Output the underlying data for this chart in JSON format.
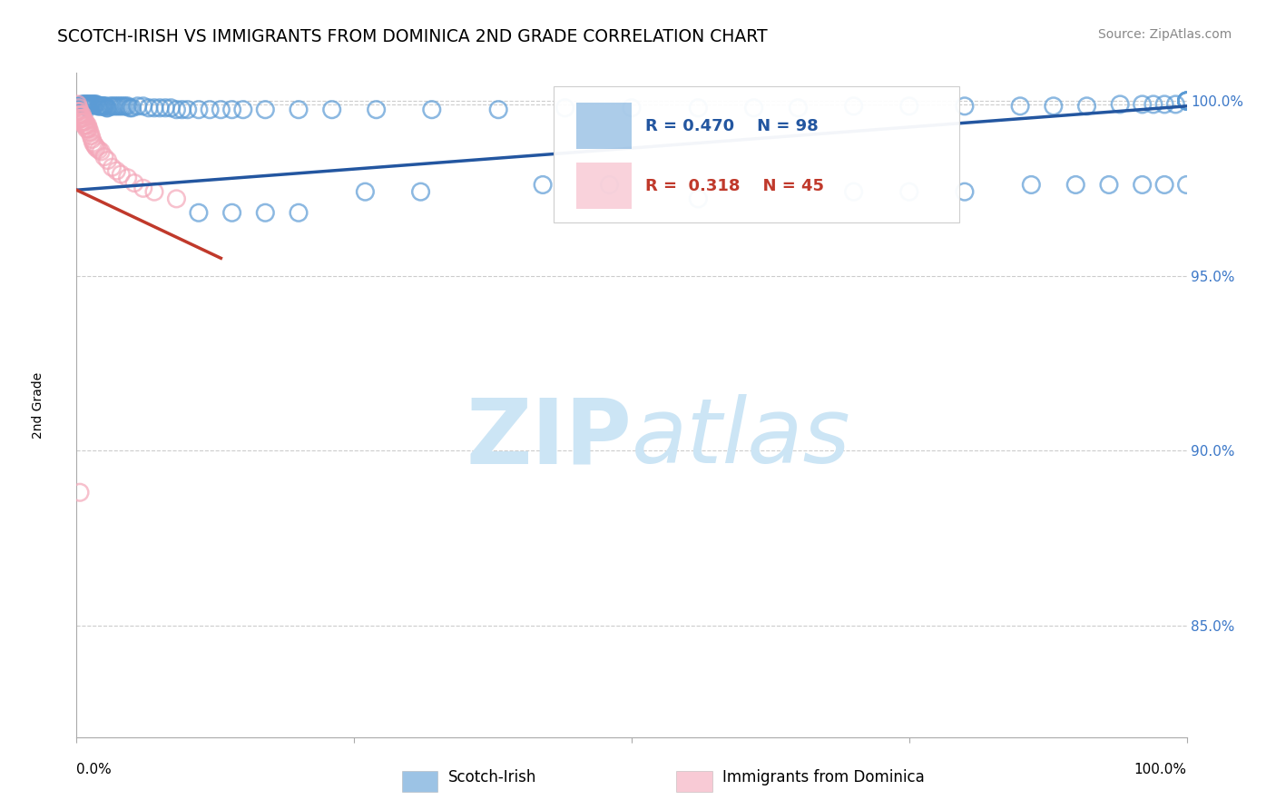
{
  "title": "SCOTCH-IRISH VS IMMIGRANTS FROM DOMINICA 2ND GRADE CORRELATION CHART",
  "source": "Source: ZipAtlas.com",
  "ylabel": "2nd Grade",
  "xmin": 0.0,
  "xmax": 1.0,
  "ymin": 0.818,
  "ymax": 1.008,
  "yticks": [
    0.85,
    0.9,
    0.95,
    1.0
  ],
  "ytick_labels": [
    "85.0%",
    "90.0%",
    "95.0%",
    "100.0%"
  ],
  "blue_R": 0.47,
  "blue_N": 98,
  "pink_R": 0.318,
  "pink_N": 45,
  "blue_color": "#5b9bd5",
  "pink_color": "#f4a7b9",
  "blue_line_color": "#2356a0",
  "pink_line_color": "#c0392b",
  "legend_blue_label": "Scotch-Irish",
  "legend_pink_label": "Immigrants from Dominica",
  "watermark_color": "#cce5f5",
  "blue_trend_x0": 0.0,
  "blue_trend_y0": 0.9745,
  "blue_trend_x1": 1.0,
  "blue_trend_y1": 0.9985,
  "pink_trend_x0": 0.0,
  "pink_trend_y0": 0.9745,
  "pink_trend_x1": 0.13,
  "pink_trend_y1": 0.955,
  "blue_scatter_x": [
    0.005,
    0.006,
    0.007,
    0.008,
    0.009,
    0.01,
    0.01,
    0.011,
    0.012,
    0.013,
    0.014,
    0.015,
    0.016,
    0.017,
    0.018,
    0.019,
    0.02,
    0.021,
    0.022,
    0.023,
    0.024,
    0.025,
    0.026,
    0.027,
    0.028,
    0.03,
    0.032,
    0.034,
    0.036,
    0.038,
    0.04,
    0.042,
    0.044,
    0.046,
    0.048,
    0.05,
    0.055,
    0.06,
    0.065,
    0.07,
    0.075,
    0.08,
    0.085,
    0.09,
    0.095,
    0.1,
    0.11,
    0.12,
    0.13,
    0.14,
    0.15,
    0.17,
    0.2,
    0.23,
    0.27,
    0.32,
    0.38,
    0.44,
    0.5,
    0.56,
    0.61,
    0.65,
    0.7,
    0.75,
    0.8,
    0.85,
    0.88,
    0.91,
    0.94,
    0.96,
    0.97,
    0.98,
    0.99,
    1.0,
    1.0,
    1.0,
    1.0,
    1.0,
    1.0,
    1.0,
    0.26,
    0.31,
    0.56,
    0.42,
    0.48,
    0.7,
    0.75,
    0.8,
    0.86,
    0.9,
    0.93,
    0.96,
    0.98,
    1.0,
    0.2,
    0.17,
    0.14,
    0.11
  ],
  "blue_scatter_y": [
    0.999,
    0.999,
    0.999,
    0.999,
    0.999,
    0.999,
    0.998,
    0.999,
    0.999,
    0.999,
    0.999,
    0.999,
    0.999,
    0.999,
    0.999,
    0.9985,
    0.9985,
    0.9985,
    0.9985,
    0.9985,
    0.9985,
    0.9985,
    0.9985,
    0.998,
    0.998,
    0.9985,
    0.9985,
    0.9985,
    0.9985,
    0.9985,
    0.9985,
    0.9985,
    0.9985,
    0.9985,
    0.998,
    0.998,
    0.9985,
    0.9985,
    0.998,
    0.998,
    0.998,
    0.998,
    0.998,
    0.9975,
    0.9975,
    0.9975,
    0.9975,
    0.9975,
    0.9975,
    0.9975,
    0.9975,
    0.9975,
    0.9975,
    0.9975,
    0.9975,
    0.9975,
    0.9975,
    0.998,
    0.998,
    0.998,
    0.998,
    0.998,
    0.9985,
    0.9985,
    0.9985,
    0.9985,
    0.9985,
    0.9985,
    0.999,
    0.999,
    0.999,
    0.999,
    0.999,
    1.0,
    1.0,
    1.0,
    1.0,
    1.0,
    1.0,
    1.0,
    0.974,
    0.974,
    0.972,
    0.976,
    0.976,
    0.974,
    0.974,
    0.974,
    0.976,
    0.976,
    0.976,
    0.976,
    0.976,
    0.976,
    0.968,
    0.968,
    0.968,
    0.968
  ],
  "pink_scatter_x": [
    0.001,
    0.001,
    0.002,
    0.002,
    0.002,
    0.003,
    0.003,
    0.003,
    0.004,
    0.004,
    0.004,
    0.005,
    0.005,
    0.005,
    0.006,
    0.006,
    0.007,
    0.007,
    0.008,
    0.008,
    0.009,
    0.009,
    0.01,
    0.01,
    0.011,
    0.012,
    0.013,
    0.014,
    0.015,
    0.016,
    0.017,
    0.018,
    0.02,
    0.022,
    0.025,
    0.028,
    0.032,
    0.036,
    0.04,
    0.046,
    0.052,
    0.06,
    0.07,
    0.09,
    0.003
  ],
  "pink_scatter_y": [
    0.999,
    0.997,
    0.998,
    0.996,
    0.995,
    0.997,
    0.996,
    0.995,
    0.996,
    0.995,
    0.994,
    0.996,
    0.995,
    0.994,
    0.995,
    0.994,
    0.994,
    0.993,
    0.994,
    0.993,
    0.993,
    0.992,
    0.993,
    0.992,
    0.992,
    0.991,
    0.99,
    0.989,
    0.988,
    0.9875,
    0.987,
    0.9865,
    0.986,
    0.9855,
    0.984,
    0.983,
    0.981,
    0.98,
    0.979,
    0.978,
    0.9765,
    0.975,
    0.974,
    0.972,
    0.888
  ],
  "ref_line_y": 0.999,
  "xtick_positions": [
    0.0,
    0.25,
    0.5,
    0.75,
    1.0
  ]
}
